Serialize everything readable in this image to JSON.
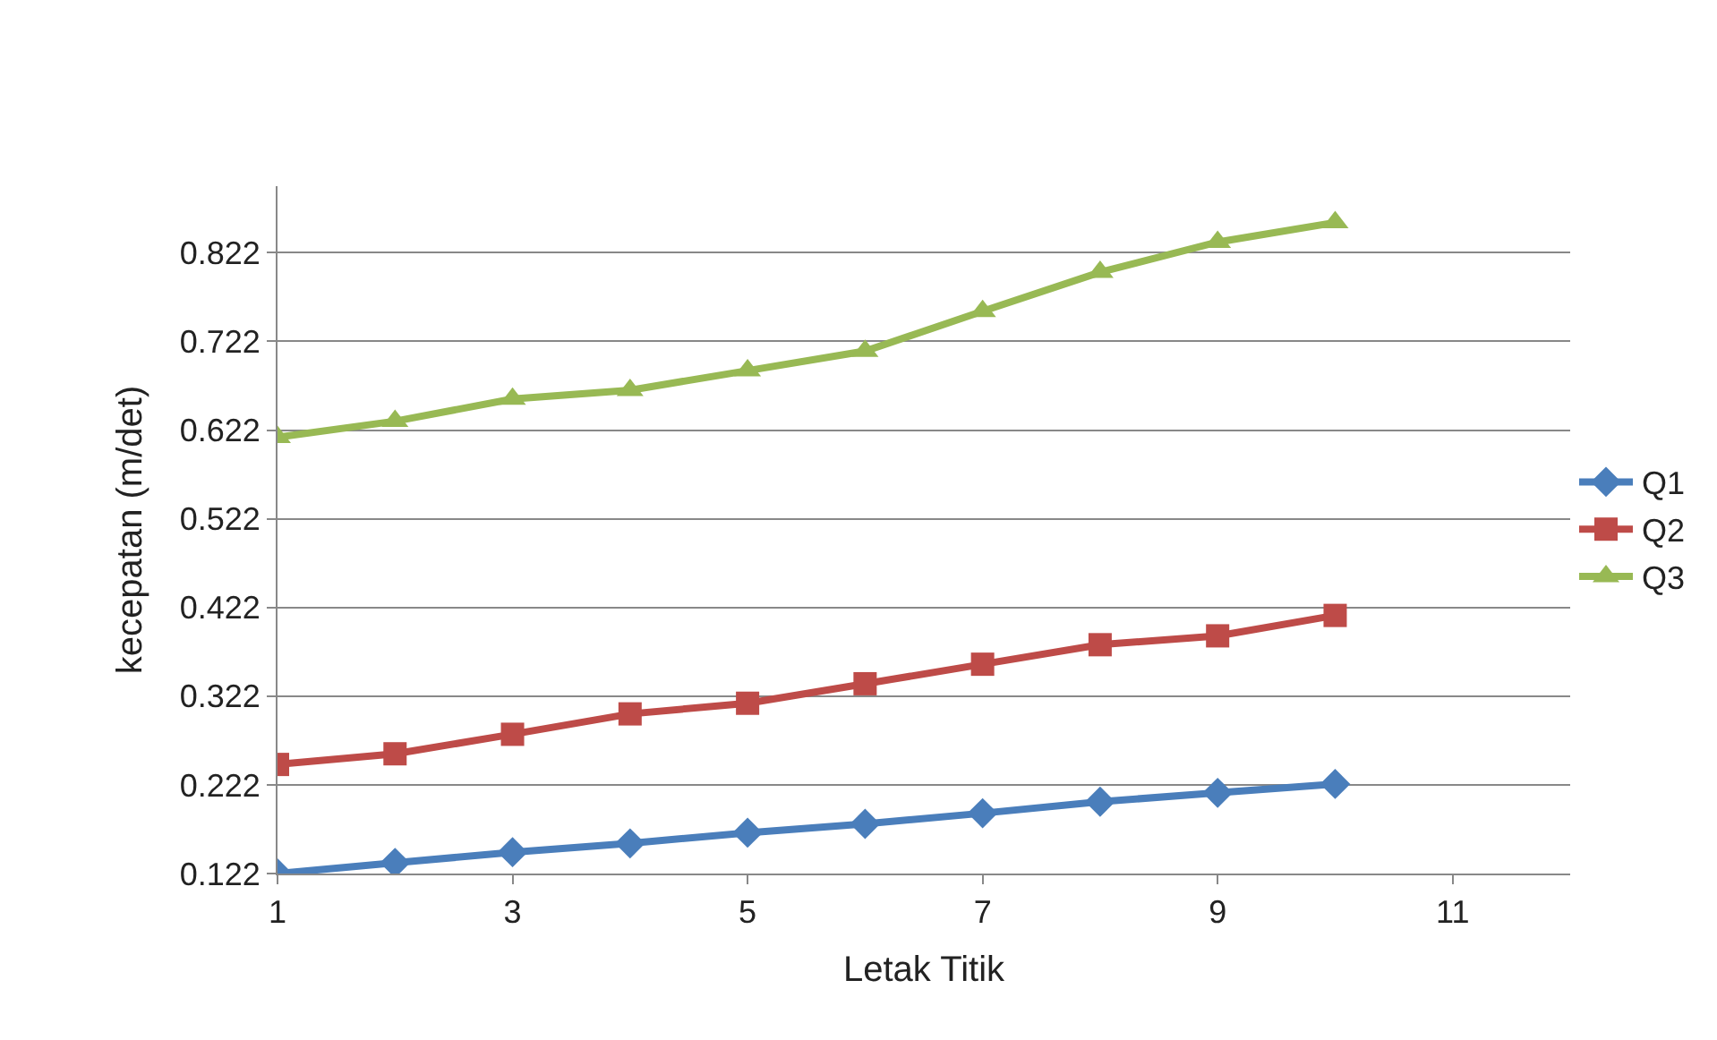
{
  "chart_data": {
    "type": "line",
    "xlabel": "Letak Titik",
    "ylabel": "kecepatan (m/det)",
    "x": [
      1,
      2,
      3,
      4,
      5,
      6,
      7,
      8,
      9,
      10
    ],
    "series": [
      {
        "name": "Q1",
        "color": "#4a7ebb",
        "marker": "diamond",
        "values": [
          0.122,
          0.134,
          0.146,
          0.156,
          0.168,
          0.178,
          0.19,
          0.203,
          0.213,
          0.223
        ]
      },
      {
        "name": "Q2",
        "color": "#be4b48",
        "marker": "square",
        "values": [
          0.245,
          0.257,
          0.279,
          0.302,
          0.314,
          0.336,
          0.358,
          0.38,
          0.39,
          0.413
        ]
      },
      {
        "name": "Q3",
        "color": "#98b954",
        "marker": "triangle",
        "values": [
          0.614,
          0.632,
          0.657,
          0.667,
          0.689,
          0.711,
          0.756,
          0.8,
          0.834,
          0.856
        ]
      }
    ],
    "xlim": [
      1,
      12
    ],
    "xticks": [
      1,
      3,
      5,
      7,
      9,
      11
    ],
    "ylim": [
      0.122,
      0.897
    ],
    "yticks": [
      0.122,
      0.222,
      0.322,
      0.422,
      0.522,
      0.622,
      0.722,
      0.822
    ],
    "grid": "y",
    "legend": "right",
    "line_style": "solid"
  }
}
